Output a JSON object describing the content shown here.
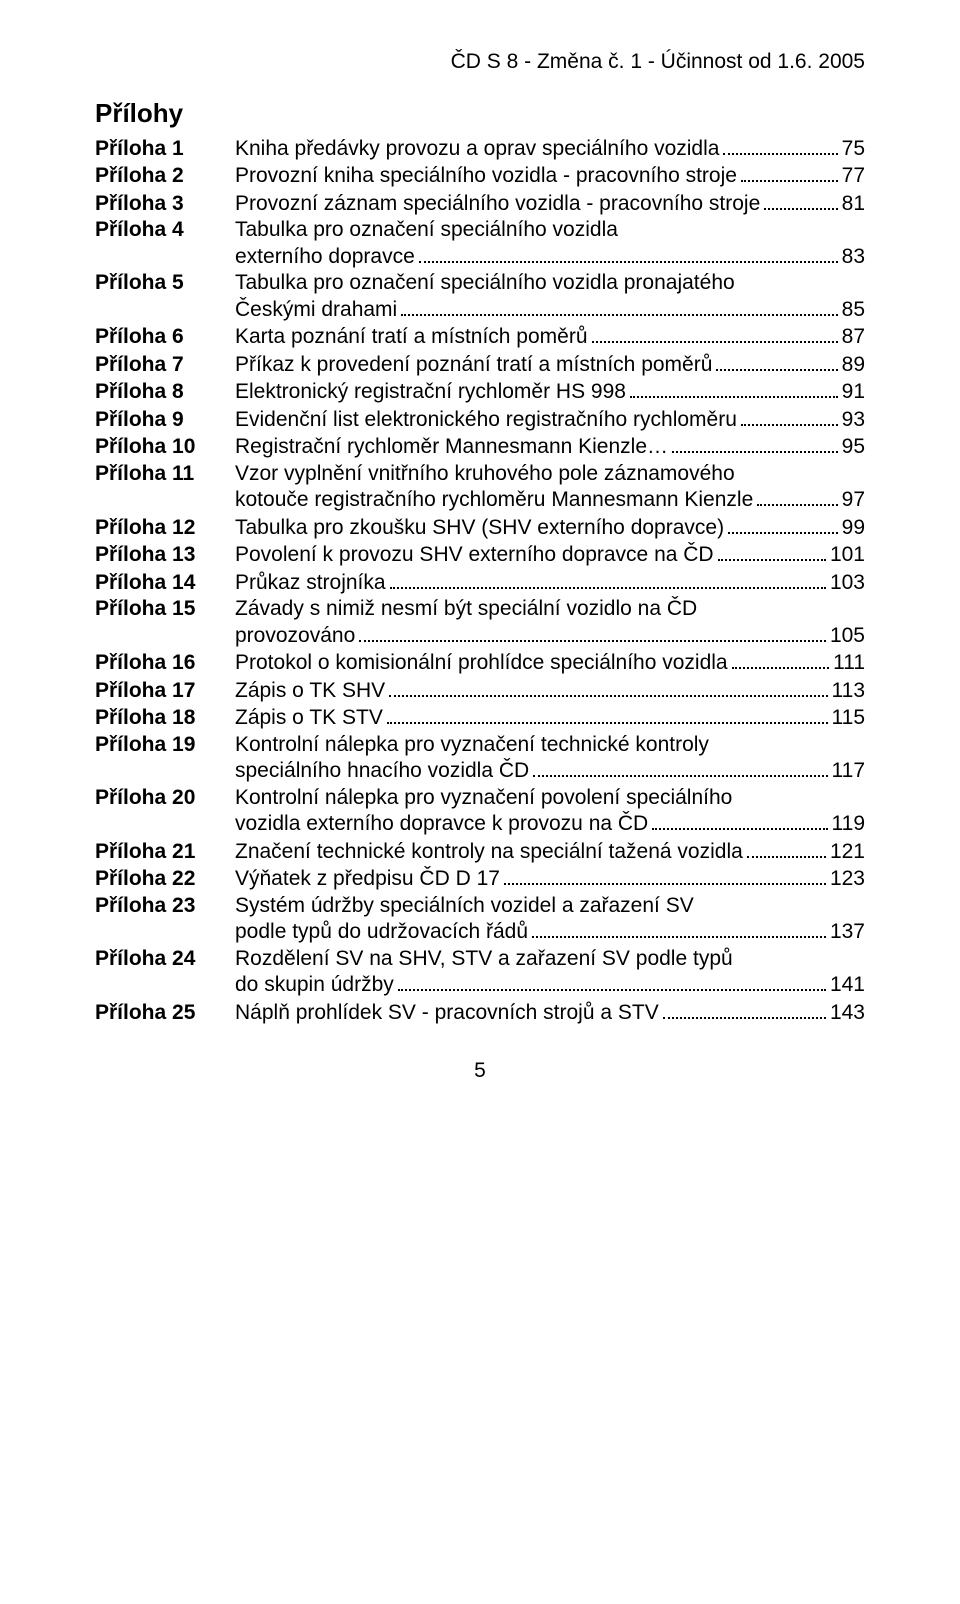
{
  "header": "ČD S 8 - Změna č. 1 - Účinnost od 1.6. 2005",
  "section_title": "Přílohy",
  "page_number": "5",
  "entries": [
    {
      "label": "Příloha 1",
      "lines": [
        "Kniha předávky provozu a oprav speciálního vozidla"
      ],
      "page": "75"
    },
    {
      "label": "Příloha 2",
      "lines": [
        "Provozní kniha speciálního vozidla - pracovního stroje"
      ],
      "page": "77"
    },
    {
      "label": "Příloha 3",
      "lines": [
        "Provozní záznam speciálního vozidla - pracovního stroje"
      ],
      "page": "81"
    },
    {
      "label": "Příloha 4",
      "lines": [
        "Tabulka pro označení speciálního vozidla",
        "externího dopravce"
      ],
      "page": "83"
    },
    {
      "label": "Příloha 5",
      "lines": [
        "Tabulka pro označení speciálního vozidla pronajatého",
        "Českými drahami"
      ],
      "page": "85"
    },
    {
      "label": "Příloha 6",
      "lines": [
        "Karta poznání tratí a místních poměrů"
      ],
      "page": "87"
    },
    {
      "label": "Příloha 7",
      "lines": [
        "Příkaz k provedení poznání tratí a místních poměrů"
      ],
      "page": "89"
    },
    {
      "label": "Příloha 8",
      "lines": [
        "Elektronický registrační rychloměr HS 998"
      ],
      "page": "91"
    },
    {
      "label": "Příloha 9",
      "lines": [
        "Evidenční list elektronického registračního rychloměru"
      ],
      "page": "93"
    },
    {
      "label": "Příloha 10",
      "lines": [
        "Registrační rychloměr Mannesmann Kienzle…"
      ],
      "page": "95"
    },
    {
      "label": "Příloha 11",
      "lines": [
        "Vzor vyplnění vnitřního kruhového pole záznamového",
        "kotouče registračního rychloměru Mannesmann Kienzle"
      ],
      "page": "97"
    },
    {
      "label": "Příloha 12",
      "lines": [
        "Tabulka pro zkoušku SHV (SHV externího dopravce)"
      ],
      "page": "99"
    },
    {
      "label": "Příloha 13",
      "lines": [
        "Povolení k provozu SHV externího dopravce na ČD"
      ],
      "page": "101"
    },
    {
      "label": "Příloha 14",
      "lines": [
        "Průkaz strojníka"
      ],
      "page": "103"
    },
    {
      "label": "Příloha 15",
      "lines": [
        "Závady s nimiž nesmí být speciální vozidlo na ČD",
        "provozováno"
      ],
      "page": "105"
    },
    {
      "label": "Příloha 16",
      "lines": [
        "Protokol o komisionální prohlídce speciálního vozidla"
      ],
      "page": "111"
    },
    {
      "label": "Příloha 17",
      "lines": [
        "Zápis o TK SHV"
      ],
      "page": "113"
    },
    {
      "label": "Příloha 18",
      "lines": [
        "Zápis o TK STV"
      ],
      "page": "115"
    },
    {
      "label": "Příloha 19",
      "lines": [
        "Kontrolní nálepka pro vyznačení technické kontroly",
        "speciálního hnacího vozidla ČD"
      ],
      "page": "117"
    },
    {
      "label": "Příloha 20",
      "lines": [
        "Kontrolní nálepka pro vyznačení povolení speciálního",
        "vozidla externího dopravce k provozu na ČD"
      ],
      "page": "119"
    },
    {
      "label": "Příloha 21",
      "lines": [
        "Značení technické kontroly na speciální tažená vozidla"
      ],
      "page": "121"
    },
    {
      "label": "Příloha 22",
      "lines": [
        "Výňatek z předpisu ČD D 17"
      ],
      "page": "123"
    },
    {
      "label": "Příloha 23",
      "lines": [
        "Systém údržby speciálních vozidel a zařazení SV",
        "podle typů do udržovacích řádů"
      ],
      "page": "137"
    },
    {
      "label": "Příloha 24",
      "lines": [
        "Rozdělení SV na SHV, STV a zařazení SV podle typů",
        "do skupin údržby"
      ],
      "page": "141"
    },
    {
      "label": "Příloha 25",
      "lines": [
        "Náplň prohlídek SV - pracovních strojů a STV"
      ],
      "page": "143"
    }
  ]
}
